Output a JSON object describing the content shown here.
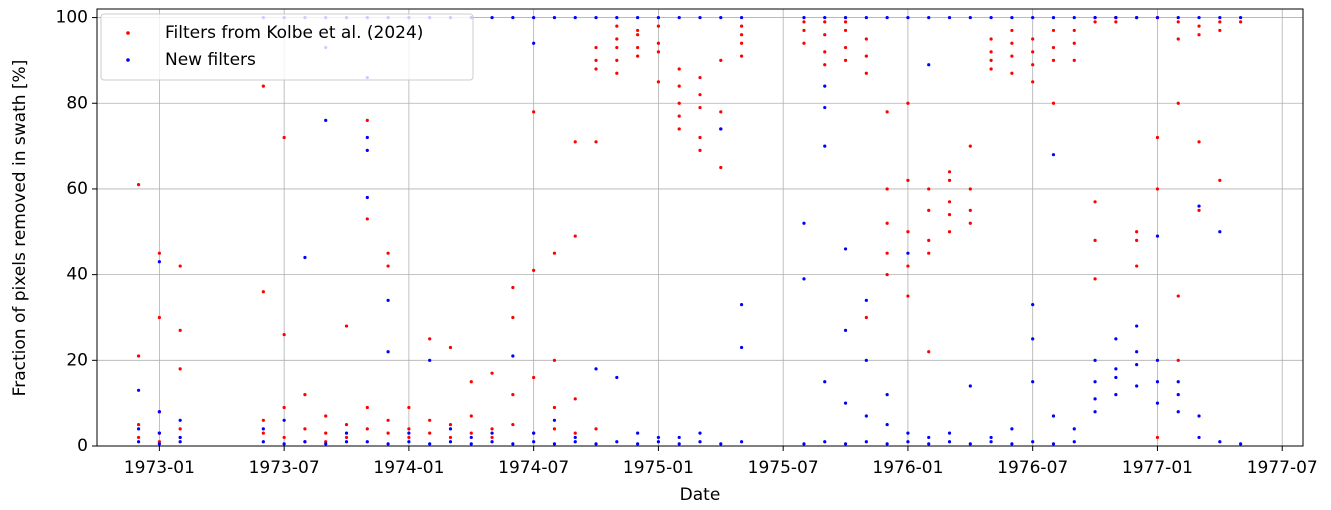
{
  "chart_data": {
    "type": "scatter",
    "xlabel": "Date",
    "ylabel": "Fraction of pixels removed in swath [%]",
    "xlim": [
      "1972-10",
      "1977-08"
    ],
    "xticks": [
      "1973-01",
      "1973-07",
      "1974-01",
      "1974-07",
      "1975-01",
      "1975-07",
      "1976-01",
      "1976-07",
      "1977-01",
      "1977-07"
    ],
    "ylim": [
      0,
      102
    ],
    "yticks": [
      0,
      20,
      40,
      60,
      80,
      100
    ],
    "grid": true,
    "legend": "upper left",
    "series": [
      {
        "name": "Filters from Kolbe et al. (2024)",
        "color": "#ff0000",
        "x": [
          "1972-12",
          "1972-12",
          "1972-12",
          "1972-12",
          "1973-01",
          "1973-01",
          "1973-01",
          "1973-01",
          "1973-01",
          "1973-02",
          "1973-02",
          "1973-02",
          "1973-02",
          "1973-02",
          "1973-06",
          "1973-06",
          "1973-06",
          "1973-06",
          "1973-07",
          "1973-07",
          "1973-07",
          "1973-07",
          "1973-08",
          "1973-08",
          "1973-08",
          "1973-09",
          "1973-09",
          "1973-09",
          "1973-10",
          "1973-10",
          "1973-10",
          "1973-11",
          "1973-11",
          "1973-11",
          "1973-11",
          "1973-12",
          "1973-12",
          "1973-12",
          "1973-12",
          "1974-01",
          "1974-01",
          "1974-01",
          "1974-02",
          "1974-02",
          "1974-02",
          "1974-03",
          "1974-03",
          "1974-03",
          "1974-04",
          "1974-04",
          "1974-04",
          "1974-05",
          "1974-05",
          "1974-05",
          "1974-06",
          "1974-06",
          "1974-06",
          "1974-06",
          "1974-07",
          "1974-07",
          "1974-07",
          "1974-07",
          "1974-08",
          "1974-08",
          "1974-08",
          "1974-08",
          "1974-09",
          "1974-09",
          "1974-09",
          "1974-09",
          "1974-10",
          "1974-10",
          "1974-10",
          "1974-10",
          "1974-10",
          "1974-11",
          "1974-11",
          "1974-11",
          "1974-11",
          "1974-11",
          "1974-12",
          "1974-12",
          "1974-12",
          "1974-12",
          "1975-01",
          "1975-01",
          "1975-01",
          "1975-01",
          "1975-02",
          "1975-02",
          "1975-02",
          "1975-02",
          "1975-02",
          "1975-03",
          "1975-03",
          "1975-03",
          "1975-03",
          "1975-03",
          "1975-04",
          "1975-04",
          "1975-04",
          "1975-04",
          "1975-05",
          "1975-05",
          "1975-05",
          "1975-05",
          "1975-08",
          "1975-08",
          "1975-08",
          "1975-09",
          "1975-09",
          "1975-09",
          "1975-09",
          "1975-10",
          "1975-10",
          "1975-10",
          "1975-10",
          "1975-11",
          "1975-11",
          "1975-11",
          "1975-11",
          "1975-12",
          "1975-12",
          "1975-12",
          "1975-12",
          "1975-12",
          "1976-01",
          "1976-01",
          "1976-01",
          "1976-01",
          "1976-01",
          "1976-02",
          "1976-02",
          "1976-02",
          "1976-02",
          "1976-02",
          "1976-03",
          "1976-03",
          "1976-03",
          "1976-03",
          "1976-03",
          "1976-04",
          "1976-04",
          "1976-04",
          "1976-04",
          "1976-05",
          "1976-05",
          "1976-05",
          "1976-05",
          "1976-06",
          "1976-06",
          "1976-06",
          "1976-06",
          "1976-07",
          "1976-07",
          "1976-07",
          "1976-07",
          "1976-08",
          "1976-08",
          "1976-08",
          "1976-08",
          "1976-09",
          "1976-09",
          "1976-09",
          "1976-10",
          "1976-10",
          "1976-10",
          "1976-10",
          "1976-10",
          "1976-11",
          "1976-11",
          "1976-11",
          "1976-12",
          "1976-12",
          "1976-12",
          "1976-12",
          "1977-01",
          "1977-01",
          "1977-01",
          "1977-01",
          "1977-02",
          "1977-02",
          "1977-02",
          "1977-02",
          "1977-02",
          "1977-03",
          "1977-03",
          "1977-03",
          "1977-03",
          "1977-04",
          "1977-04",
          "1977-04",
          "1977-05"
        ],
        "values": [
          2,
          5,
          21,
          61,
          3,
          8,
          45,
          30,
          1,
          4,
          18,
          27,
          2,
          42,
          3,
          6,
          36,
          84,
          2,
          9,
          72,
          26,
          4,
          12,
          1,
          3,
          7,
          1,
          2,
          28,
          5,
          4,
          53,
          76,
          9,
          3,
          45,
          42,
          6,
          2,
          9,
          4,
          3,
          25,
          6,
          2,
          23,
          5,
          3,
          15,
          7,
          4,
          17,
          2,
          5,
          37,
          30,
          12,
          3,
          78,
          41,
          16,
          4,
          20,
          45,
          9,
          3,
          49,
          71,
          11,
          4,
          71,
          88,
          93,
          90,
          95,
          90,
          93,
          98,
          87,
          96,
          93,
          91,
          97,
          94,
          98,
          92,
          85,
          80,
          84,
          77,
          88,
          74,
          82,
          79,
          72,
          86,
          69,
          78,
          74,
          90,
          65,
          94,
          98,
          91,
          96,
          97,
          99,
          94,
          96,
          92,
          99,
          89,
          97,
          93,
          90,
          99,
          95,
          91,
          87,
          30,
          78,
          60,
          52,
          45,
          40,
          42,
          35,
          50,
          62,
          80,
          48,
          55,
          60,
          45,
          22,
          57,
          54,
          62,
          50,
          64,
          55,
          60,
          52,
          70,
          92,
          88,
          95,
          90,
          91,
          94,
          87,
          97,
          89,
          92,
          95,
          85,
          93,
          90,
          80,
          97,
          94,
          97,
          90,
          99,
          100,
          57,
          39,
          48,
          100,
          99,
          100,
          100,
          50,
          48,
          42,
          100,
          72,
          60,
          2,
          99,
          95,
          35,
          20,
          80,
          98,
          96,
          71,
          55,
          99,
          97,
          62,
          99
        ]
      },
      {
        "name": "New filters",
        "color": "#0000ff",
        "x": [
          "1972-12",
          "1972-12",
          "1972-12",
          "1973-01",
          "1973-01",
          "1973-01",
          "1973-01",
          "1973-02",
          "1973-02",
          "1973-02",
          "1973-06",
          "1973-06",
          "1973-06",
          "1973-07",
          "1973-07",
          "1973-07",
          "1973-08",
          "1973-08",
          "1973-08",
          "1973-09",
          "1973-09",
          "1973-09",
          "1973-09",
          "1973-10",
          "1973-10",
          "1973-10",
          "1973-11",
          "1973-11",
          "1973-11",
          "1973-11",
          "1973-11",
          "1973-11",
          "1973-12",
          "1973-12",
          "1973-12",
          "1973-12",
          "1974-01",
          "1974-01",
          "1974-01",
          "1974-02",
          "1974-02",
          "1974-02",
          "1974-03",
          "1974-03",
          "1974-03",
          "1974-04",
          "1974-04",
          "1974-04",
          "1974-05",
          "1974-05",
          "1974-05",
          "1974-06",
          "1974-06",
          "1974-06",
          "1974-07",
          "1974-07",
          "1974-07",
          "1974-07",
          "1974-08",
          "1974-08",
          "1974-08",
          "1974-09",
          "1974-09",
          "1974-09",
          "1974-10",
          "1974-10",
          "1974-10",
          "1974-11",
          "1974-11",
          "1974-11",
          "1974-12",
          "1974-12",
          "1974-12",
          "1975-01",
          "1975-01",
          "1975-01",
          "1975-02",
          "1975-02",
          "1975-02",
          "1975-03",
          "1975-03",
          "1975-03",
          "1975-04",
          "1975-04",
          "1975-04",
          "1975-05",
          "1975-05",
          "1975-05",
          "1975-05",
          "1975-08",
          "1975-08",
          "1975-08",
          "1975-08",
          "1975-09",
          "1975-09",
          "1975-09",
          "1975-09",
          "1975-09",
          "1975-09",
          "1975-10",
          "1975-10",
          "1975-10",
          "1975-10",
          "1975-10",
          "1975-11",
          "1975-11",
          "1975-11",
          "1975-11",
          "1975-11",
          "1975-12",
          "1975-12",
          "1975-12",
          "1975-12",
          "1976-01",
          "1976-01",
          "1976-01",
          "1976-01",
          "1976-02",
          "1976-02",
          "1976-02",
          "1976-02",
          "1976-03",
          "1976-03",
          "1976-03",
          "1976-04",
          "1976-04",
          "1976-04",
          "1976-05",
          "1976-05",
          "1976-05",
          "1976-06",
          "1976-06",
          "1976-06",
          "1976-07",
          "1976-07",
          "1976-07",
          "1976-07",
          "1976-07",
          "1976-08",
          "1976-08",
          "1976-08",
          "1976-08",
          "1976-09",
          "1976-09",
          "1976-09",
          "1976-10",
          "1976-10",
          "1976-10",
          "1976-10",
          "1976-10",
          "1976-11",
          "1976-11",
          "1976-11",
          "1976-11",
          "1976-11",
          "1976-12",
          "1976-12",
          "1976-12",
          "1976-12",
          "1976-12",
          "1977-01",
          "1977-01",
          "1977-01",
          "1977-01",
          "1977-01",
          "1977-02",
          "1977-02",
          "1977-02",
          "1977-02",
          "1977-03",
          "1977-03",
          "1977-03",
          "1977-03",
          "1977-04",
          "1977-04",
          "1977-04",
          "1977-05",
          "1977-05"
        ],
        "values": [
          1,
          4,
          13,
          0.5,
          43,
          8,
          3,
          1,
          6,
          2,
          1,
          4,
          100,
          0.5,
          6,
          100,
          1,
          44,
          100,
          0.5,
          76,
          93,
          100,
          1,
          3,
          100,
          1,
          72,
          69,
          58,
          86,
          100,
          0.5,
          34,
          22,
          100,
          1,
          3,
          100,
          0.5,
          20,
          100,
          1,
          4,
          100,
          0.5,
          2,
          100,
          1,
          3,
          100,
          0.5,
          21,
          100,
          1,
          94,
          3,
          100,
          0.5,
          6,
          100,
          1,
          2,
          100,
          0.5,
          18,
          100,
          1,
          16,
          100,
          0.5,
          3,
          100,
          1,
          2,
          100,
          0.5,
          2,
          100,
          1,
          3,
          100,
          0.5,
          74,
          100,
          1,
          33,
          23,
          100,
          0.5,
          39,
          52,
          100,
          1,
          79,
          84,
          70,
          15,
          100,
          0.5,
          27,
          46,
          10,
          100,
          1,
          34,
          20,
          7,
          100,
          0.5,
          12,
          5,
          100,
          1,
          45,
          3,
          100,
          0.5,
          2,
          89,
          100,
          1,
          3,
          100,
          0.5,
          14,
          100,
          1,
          2,
          100,
          0.5,
          4,
          100,
          1,
          33,
          25,
          15,
          100,
          0.5,
          7,
          68,
          100,
          1,
          4,
          100,
          11,
          15,
          20,
          8,
          100,
          18,
          25,
          12,
          16,
          100,
          22,
          14,
          28,
          19,
          100,
          15,
          20,
          10,
          49,
          100,
          12,
          8,
          15,
          100,
          7,
          2,
          56,
          100,
          1,
          50,
          100,
          0.5,
          100
        ]
      }
    ]
  }
}
